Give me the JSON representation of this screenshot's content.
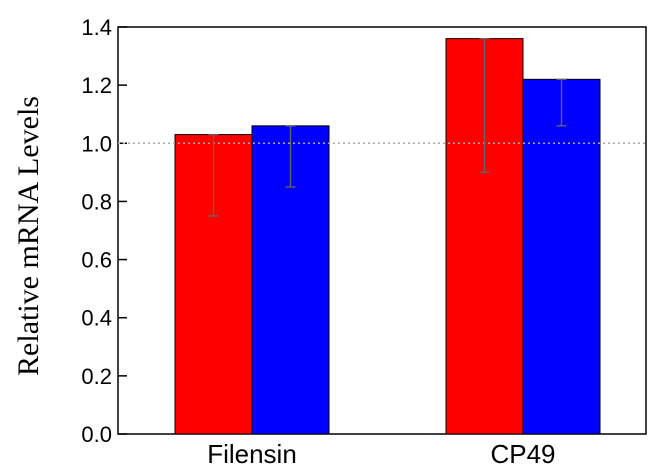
{
  "chart_data": {
    "type": "bar",
    "title": "",
    "xlabel": "",
    "ylabel": "Relative mRNA Levels",
    "categories": [
      "Filensin",
      "CP49"
    ],
    "series": [
      {
        "color": "#ff0000",
        "values": [
          1.03,
          1.36
        ],
        "error_low": [
          0.75,
          0.9
        ],
        "error_high": [
          1.03,
          1.36
        ]
      },
      {
        "color": "#0000ff",
        "values": [
          1.06,
          1.22
        ],
        "error_low": [
          0.85,
          1.06
        ],
        "error_high": [
          1.06,
          1.22
        ]
      }
    ],
    "ylim": [
      0,
      1.4
    ],
    "yticks": [
      0.0,
      0.2,
      0.4,
      0.6,
      0.8,
      1.0,
      1.2,
      1.4
    ],
    "ytick_labels": [
      "0.0",
      "0.2",
      "0.4",
      "0.6",
      "0.8",
      "1.0",
      "1.2",
      "1.4"
    ],
    "reference_line": 1.0,
    "grid": false,
    "legend": "none"
  }
}
